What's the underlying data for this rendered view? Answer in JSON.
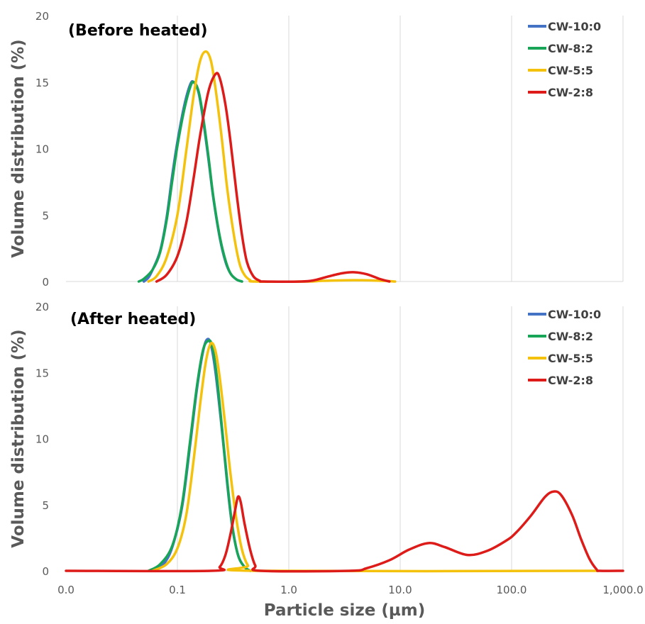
{
  "chart_data": [
    {
      "type": "line",
      "title": "(Before heated)",
      "ylabel": "Volume distribution (%)",
      "xlabel": "",
      "x_scale": "log",
      "xlim": [
        0.01,
        1000
      ],
      "ylim": [
        0,
        20
      ],
      "y_ticks": [
        "0",
        "5",
        "10",
        "15",
        "20"
      ],
      "grid": "vertical gridlines at each decade",
      "legend_position": "top-right",
      "series": [
        {
          "name": "CW-10:0",
          "color": "#4472C4",
          "points": [
            [
              0.05,
              0
            ],
            [
              0.055,
              0.3
            ],
            [
              0.06,
              0.9
            ],
            [
              0.07,
              2.3
            ],
            [
              0.08,
              4.8
            ],
            [
              0.09,
              8.0
            ],
            [
              0.1,
              10.5
            ],
            [
              0.115,
              13.2
            ],
            [
              0.13,
              14.8
            ],
            [
              0.14,
              15.0
            ],
            [
              0.155,
              14.2
            ],
            [
              0.17,
              12.2
            ],
            [
              0.19,
              9.2
            ],
            [
              0.21,
              6.3
            ],
            [
              0.24,
              3.3
            ],
            [
              0.27,
              1.5
            ],
            [
              0.3,
              0.6
            ],
            [
              0.34,
              0.15
            ],
            [
              0.38,
              0
            ]
          ]
        },
        {
          "name": "CW-8:2",
          "color": "#18A558",
          "points": [
            [
              0.045,
              0
            ],
            [
              0.05,
              0.2
            ],
            [
              0.06,
              0.9
            ],
            [
              0.07,
              2.2
            ],
            [
              0.08,
              4.6
            ],
            [
              0.09,
              7.6
            ],
            [
              0.1,
              10.2
            ],
            [
              0.115,
              12.9
            ],
            [
              0.13,
              14.6
            ],
            [
              0.14,
              15.0
            ],
            [
              0.155,
              14.3
            ],
            [
              0.17,
              12.4
            ],
            [
              0.19,
              9.4
            ],
            [
              0.21,
              6.4
            ],
            [
              0.24,
              3.4
            ],
            [
              0.27,
              1.6
            ],
            [
              0.3,
              0.6
            ],
            [
              0.34,
              0.15
            ],
            [
              0.38,
              0
            ]
          ]
        },
        {
          "name": "CW-5:5",
          "color": "#F4C20D",
          "points": [
            [
              0.055,
              0
            ],
            [
              0.065,
              0.4
            ],
            [
              0.08,
              1.8
            ],
            [
              0.1,
              5.0
            ],
            [
              0.12,
              9.8
            ],
            [
              0.14,
              14.0
            ],
            [
              0.16,
              16.6
            ],
            [
              0.18,
              17.3
            ],
            [
              0.2,
              16.6
            ],
            [
              0.22,
              14.5
            ],
            [
              0.25,
              10.8
            ],
            [
              0.28,
              7.0
            ],
            [
              0.32,
              3.6
            ],
            [
              0.36,
              1.4
            ],
            [
              0.4,
              0.5
            ],
            [
              0.45,
              0.1
            ],
            [
              0.5,
              0
            ],
            [
              1.5,
              0
            ],
            [
              2.0,
              0.05
            ],
            [
              4.0,
              0.1
            ],
            [
              7.0,
              0.05
            ],
            [
              9.0,
              0
            ]
          ]
        },
        {
          "name": "CW-2:8",
          "color": "#DD1C1A",
          "points": [
            [
              0.065,
              0
            ],
            [
              0.08,
              0.5
            ],
            [
              0.1,
              1.9
            ],
            [
              0.12,
              4.4
            ],
            [
              0.14,
              7.8
            ],
            [
              0.16,
              11.0
            ],
            [
              0.19,
              14.3
            ],
            [
              0.22,
              15.6
            ],
            [
              0.24,
              15.3
            ],
            [
              0.27,
              13.3
            ],
            [
              0.3,
              10.5
            ],
            [
              0.34,
              6.6
            ],
            [
              0.38,
              3.5
            ],
            [
              0.42,
              1.5
            ],
            [
              0.48,
              0.4
            ],
            [
              0.55,
              0.05
            ],
            [
              0.6,
              0
            ],
            [
              1.3,
              0
            ],
            [
              1.7,
              0.1
            ],
            [
              2.2,
              0.35
            ],
            [
              3.0,
              0.62
            ],
            [
              3.8,
              0.7
            ],
            [
              5.0,
              0.55
            ],
            [
              6.5,
              0.2
            ],
            [
              8.0,
              0
            ]
          ]
        }
      ]
    },
    {
      "type": "line",
      "title": "(After heated)",
      "ylabel": "Volume distribution (%)",
      "xlabel": "Particle size (µm)",
      "x_scale": "log",
      "xlim": [
        0.01,
        1000
      ],
      "ylim": [
        0,
        20
      ],
      "x_ticks": [
        "0.0",
        "0.1",
        "1.0",
        "10.0",
        "100.0",
        "1,000.0"
      ],
      "y_ticks": [
        "0",
        "5",
        "10",
        "15",
        "20"
      ],
      "grid": "vertical gridlines at each decade",
      "legend_position": "top-right",
      "series": [
        {
          "name": "CW-10:0",
          "color": "#4472C4",
          "points": [
            [
              0.06,
              0
            ],
            [
              0.075,
              0.5
            ],
            [
              0.09,
              1.8
            ],
            [
              0.11,
              4.8
            ],
            [
              0.13,
              9.5
            ],
            [
              0.15,
              13.8
            ],
            [
              0.17,
              16.6
            ],
            [
              0.185,
              17.5
            ],
            [
              0.2,
              17.1
            ],
            [
              0.22,
              15.0
            ],
            [
              0.25,
              10.8
            ],
            [
              0.28,
              6.6
            ],
            [
              0.31,
              3.4
            ],
            [
              0.35,
              1.2
            ],
            [
              0.4,
              0.3
            ],
            [
              0.45,
              0
            ]
          ]
        },
        {
          "name": "CW-8:2",
          "color": "#18A558",
          "points": [
            [
              0.055,
              0
            ],
            [
              0.07,
              0.5
            ],
            [
              0.09,
              1.9
            ],
            [
              0.11,
              5.0
            ],
            [
              0.13,
              9.8
            ],
            [
              0.15,
              14.0
            ],
            [
              0.17,
              16.7
            ],
            [
              0.19,
              17.4
            ],
            [
              0.205,
              17.0
            ],
            [
              0.225,
              14.8
            ],
            [
              0.25,
              11.0
            ],
            [
              0.28,
              6.8
            ],
            [
              0.31,
              3.5
            ],
            [
              0.35,
              1.2
            ],
            [
              0.4,
              0.3
            ],
            [
              0.45,
              0
            ]
          ]
        },
        {
          "name": "CW-5:5",
          "color": "#F4C20D",
          "points": [
            [
              0.06,
              0
            ],
            [
              0.08,
              0.5
            ],
            [
              0.1,
              1.7
            ],
            [
              0.12,
              4.2
            ],
            [
              0.14,
              8.4
            ],
            [
              0.16,
              12.6
            ],
            [
              0.18,
              15.8
            ],
            [
              0.2,
              17.2
            ],
            [
              0.22,
              16.6
            ],
            [
              0.24,
              14.6
            ],
            [
              0.27,
              10.9
            ],
            [
              0.3,
              7.3
            ],
            [
              0.34,
              3.8
            ],
            [
              0.38,
              1.6
            ],
            [
              0.43,
              0.4
            ],
            [
              0.5,
              0
            ],
            [
              600,
              0
            ]
          ]
        },
        {
          "name": "CW-2:8",
          "color": "#DD1C1A",
          "points": [
            [
              0.01,
              0
            ],
            [
              0.2,
              0
            ],
            [
              0.24,
              0.3
            ],
            [
              0.27,
              1.2
            ],
            [
              0.3,
              2.8
            ],
            [
              0.33,
              4.6
            ],
            [
              0.35,
              5.6
            ],
            [
              0.37,
              5.2
            ],
            [
              0.4,
              3.6
            ],
            [
              0.45,
              1.6
            ],
            [
              0.5,
              0.4
            ],
            [
              0.56,
              0
            ],
            [
              3.5,
              0
            ],
            [
              5,
              0.2
            ],
            [
              8,
              0.8
            ],
            [
              12,
              1.6
            ],
            [
              18,
              2.1
            ],
            [
              25,
              1.8
            ],
            [
              40,
              1.2
            ],
            [
              60,
              1.5
            ],
            [
              90,
              2.3
            ],
            [
              110,
              2.9
            ],
            [
              150,
              4.2
            ],
            [
              200,
              5.6
            ],
            [
              240,
              6.0
            ],
            [
              280,
              5.7
            ],
            [
              350,
              4.2
            ],
            [
              420,
              2.4
            ],
            [
              500,
              0.9
            ],
            [
              580,
              0.1
            ],
            [
              620,
              0
            ],
            [
              1000,
              0
            ]
          ]
        }
      ]
    }
  ]
}
